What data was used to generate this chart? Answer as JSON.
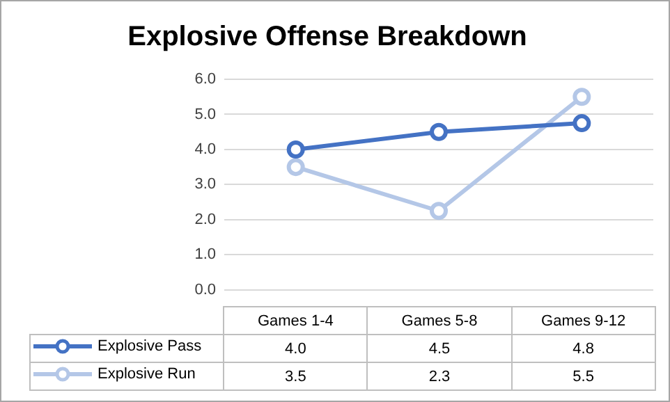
{
  "chart_data": {
    "type": "line",
    "title": "Explosive Offense Breakdown",
    "categories": [
      "Games 1-4",
      "Games 5-8",
      "Games 9-12"
    ],
    "series": [
      {
        "name": "Explosive Pass",
        "color": "#4472c4",
        "values": [
          4.0,
          4.5,
          4.75
        ],
        "value_labels": [
          "4.0",
          "4.5",
          "4.8"
        ]
      },
      {
        "name": "Explosive Run",
        "color": "#b4c7e7",
        "values": [
          3.5,
          2.25,
          5.5
        ],
        "value_labels": [
          "3.5",
          "2.3",
          "5.5"
        ]
      }
    ],
    "ylim": [
      0,
      6
    ],
    "yticks": [
      {
        "value": 0,
        "label": "0.0"
      },
      {
        "value": 1,
        "label": "1.0"
      },
      {
        "value": 2,
        "label": "2.0"
      },
      {
        "value": 3,
        "label": "3.0"
      },
      {
        "value": 4,
        "label": "4.0"
      },
      {
        "value": 5,
        "label": "5.0"
      },
      {
        "value": 6,
        "label": "6.0"
      }
    ],
    "grid": "y",
    "legend": "bottom",
    "marker": "circle"
  }
}
